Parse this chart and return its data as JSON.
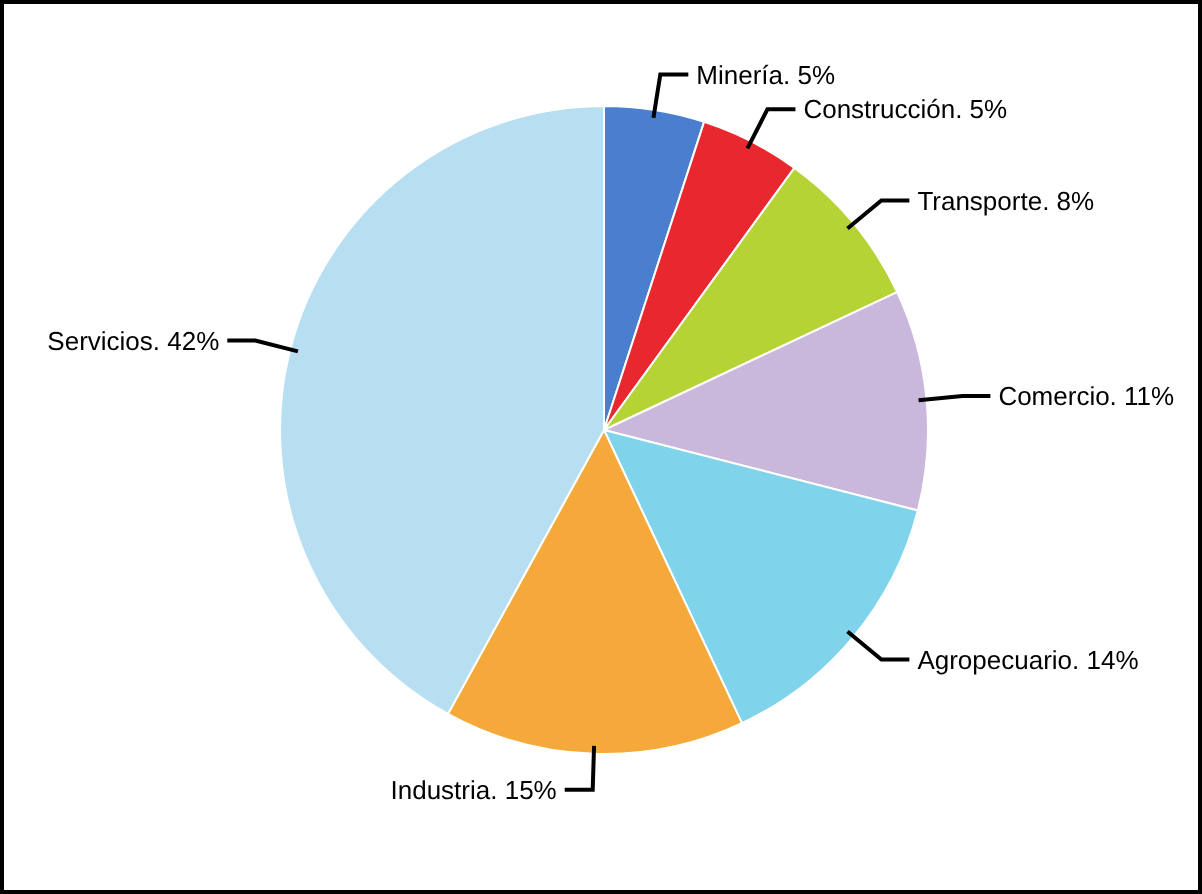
{
  "chart_data": {
    "type": "pie",
    "categories": [
      "Minería. 5%",
      "Construcción. 5%",
      "Transporte. 8%",
      "Comercio. 11%",
      "Agropecuario. 14%",
      "Industria. 15%",
      "Servicios. 42%"
    ],
    "values": [
      5,
      5,
      8,
      11,
      14,
      15,
      42
    ],
    "colors": [
      "#4a7fd0",
      "#e8282e",
      "#b5d334",
      "#c9b8dc",
      "#7fd3ea",
      "#f5a93a",
      "#b8def2"
    ]
  }
}
